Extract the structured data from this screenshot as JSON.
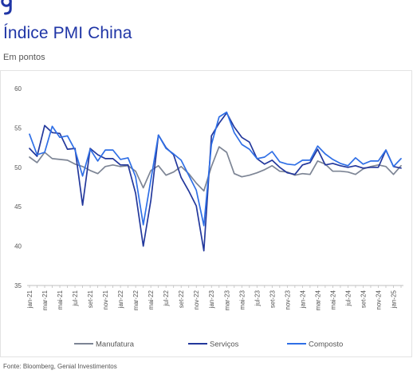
{
  "header": {
    "title": "Índice PMI China",
    "subtitle": "Em pontos"
  },
  "footer": {
    "source": "Fonte: Bloomberg, Genial Investimentos"
  },
  "colors": {
    "brand": "#1f35a6"
  },
  "chart_data": {
    "type": "line",
    "title": "",
    "xlabel": "",
    "ylabel": "",
    "ylim": [
      35,
      60
    ],
    "yticks": [
      35,
      40,
      45,
      50,
      55,
      60
    ],
    "grid": false,
    "legend_position": "bottom",
    "x": [
      "jan-21",
      "fev-21",
      "mar-21",
      "abr-21",
      "mai-21",
      "jun-21",
      "jul-21",
      "ago-21",
      "set-21",
      "out-21",
      "nov-21",
      "dez-21",
      "jan-22",
      "fev-22",
      "mar-22",
      "abr-22",
      "mai-22",
      "jun-22",
      "jul-22",
      "ago-22",
      "set-22",
      "out-22",
      "nov-22",
      "dez-22",
      "jan-23",
      "fev-23",
      "mar-23",
      "abr-23",
      "mai-23",
      "jun-23",
      "jul-23",
      "ago-23",
      "set-23",
      "out-23",
      "nov-23",
      "dez-23",
      "jan-24",
      "fev-24",
      "mar-24",
      "abr-24",
      "mai-24",
      "jun-24",
      "jul-24",
      "ago-24",
      "set-24",
      "out-24",
      "nov-24",
      "dez-24",
      "jan-25",
      "fev-25"
    ],
    "xtick_labels": [
      "jan-21",
      "mar-21",
      "mai-21",
      "jul-21",
      "set-21",
      "nov-21",
      "jan-22",
      "mar-22",
      "mai-22",
      "jul-22",
      "set-22",
      "nov-22",
      "jan-23",
      "mar-23",
      "mai-23",
      "jul-23",
      "set-23",
      "nov-23",
      "jan-24",
      "mar-24",
      "mai-24",
      "jul-24",
      "set-24",
      "nov-24",
      "jan-25"
    ],
    "series": [
      {
        "name": "Manufatura",
        "color": "#7d8595",
        "values": [
          51.3,
          50.6,
          51.9,
          51.1,
          51.0,
          50.9,
          50.4,
          50.1,
          49.6,
          49.2,
          50.1,
          50.3,
          50.1,
          50.2,
          49.5,
          47.4,
          49.6,
          50.2,
          49.0,
          49.4,
          50.1,
          49.2,
          48.0,
          47.0,
          50.1,
          52.6,
          51.9,
          49.2,
          48.8,
          49.0,
          49.3,
          49.7,
          50.2,
          49.5,
          49.4,
          49.0,
          49.2,
          49.1,
          50.8,
          50.4,
          49.5,
          49.5,
          49.4,
          49.1,
          49.8,
          50.1,
          50.3,
          50.1,
          49.1,
          50.2
        ]
      },
      {
        "name": "Serviços",
        "color": "#23389c",
        "values": [
          52.4,
          51.4,
          55.3,
          54.4,
          54.3,
          52.3,
          52.4,
          45.2,
          52.4,
          51.6,
          51.1,
          51.1,
          50.3,
          50.3,
          46.7,
          40.0,
          45.8,
          54.1,
          52.5,
          51.6,
          48.7,
          47.0,
          45.1,
          39.4,
          54.0,
          55.6,
          56.9,
          55.1,
          53.8,
          53.2,
          51.1,
          50.4,
          50.9,
          50.0,
          49.3,
          49.1,
          50.3,
          50.6,
          52.3,
          50.3,
          50.5,
          50.2,
          50.0,
          50.2,
          49.9,
          50.0,
          50.0,
          52.2,
          50.1,
          49.9
        ]
      },
      {
        "name": "Composto",
        "color": "#2f6fe6",
        "values": [
          54.2,
          51.6,
          51.9,
          55.2,
          53.8,
          54.0,
          52.2,
          48.9,
          52.3,
          50.8,
          52.2,
          52.2,
          51.0,
          51.2,
          48.8,
          42.7,
          48.4,
          54.1,
          52.4,
          51.7,
          50.9,
          49.0,
          47.1,
          42.6,
          52.9,
          56.4,
          57.0,
          54.4,
          52.9,
          52.3,
          51.1,
          51.3,
          52.0,
          50.7,
          50.4,
          50.3,
          50.9,
          50.9,
          52.7,
          51.7,
          51.0,
          50.5,
          50.2,
          51.2,
          50.4,
          50.8,
          50.8,
          52.2,
          50.1,
          51.1
        ]
      }
    ]
  }
}
